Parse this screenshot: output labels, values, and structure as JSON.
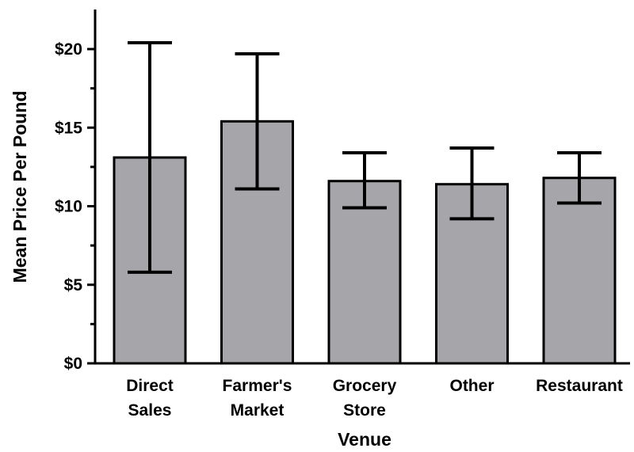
{
  "chart_data": {
    "type": "bar",
    "xlabel": "Venue",
    "ylabel": "Mean Price Per Pound",
    "ylim": [
      0,
      22
    ],
    "yticks": [
      {
        "value": 0,
        "label": "$0"
      },
      {
        "value": 5,
        "label": "$5"
      },
      {
        "value": 10,
        "label": "$10"
      },
      {
        "value": 15,
        "label": "$15"
      },
      {
        "value": 20,
        "label": "$20"
      }
    ],
    "categories": [
      {
        "lines": [
          "Direct",
          "Sales"
        ]
      },
      {
        "lines": [
          "Farmer's",
          "Market"
        ]
      },
      {
        "lines": [
          "Grocery",
          "Store"
        ]
      },
      {
        "lines": [
          "Other"
        ]
      },
      {
        "lines": [
          "Restaurant"
        ]
      }
    ],
    "values": [
      13.1,
      15.4,
      11.6,
      11.4,
      11.8
    ],
    "error_low": [
      5.8,
      11.1,
      9.9,
      9.2,
      10.2
    ],
    "error_high": [
      20.4,
      19.7,
      13.4,
      13.7,
      13.4
    ],
    "bar_color": "#a6a5aa",
    "grid": false,
    "legend": "none"
  }
}
